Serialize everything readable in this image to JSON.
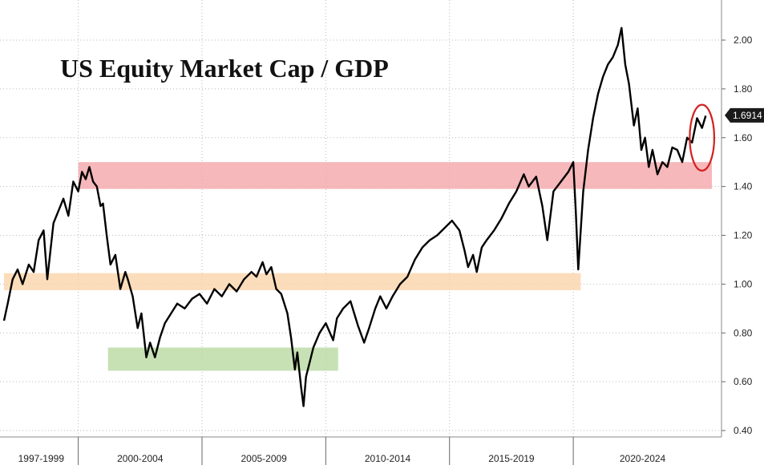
{
  "chart_data": {
    "type": "line",
    "title": "US Equity Market Cap / GDP",
    "xlabel": "",
    "ylabel": "",
    "ylim": [
      0.4,
      2.1
    ],
    "yticks": [
      "0.40",
      "0.60",
      "0.80",
      "1.00",
      "1.20",
      "1.40",
      "1.60",
      "1.80",
      "2.00"
    ],
    "x_periods": [
      "1997-1999",
      "2000-2004",
      "2005-2009",
      "2010-2014",
      "2015-2019",
      "2020-2024"
    ],
    "x_range": [
      1997.0,
      2025.6
    ],
    "grid": true,
    "last_value_label": "1.6914",
    "colors": {
      "line": "#000000",
      "red_band": "#f4a6aa",
      "orange_band": "#fbd5aa",
      "green_band": "#b9d9a1",
      "highlight": "#d42020",
      "label_bg": "#1a1a1a"
    },
    "series": [
      {
        "x": [
          1997.0,
          1997.15,
          1997.35,
          1997.55,
          1997.75,
          1998.0,
          1998.2,
          1998.4,
          1998.6,
          1998.75,
          1999.0,
          1999.2,
          1999.4,
          1999.6,
          1999.8,
          2000.0,
          2000.15,
          2000.3,
          2000.45,
          2000.6,
          2000.75,
          2000.9,
          2001.0,
          2001.15,
          2001.3,
          2001.5,
          2001.7,
          2001.9,
          2002.0,
          2002.2,
          2002.4,
          2002.55,
          2002.75,
          2002.9,
          2003.1,
          2003.3,
          2003.5,
          2003.75,
          2004.0,
          2004.3,
          2004.6,
          2004.9,
          2005.2,
          2005.5,
          2005.8,
          2006.1,
          2006.4,
          2006.7,
          2007.0,
          2007.2,
          2007.45,
          2007.6,
          2007.8,
          2008.0,
          2008.2,
          2008.45,
          2008.6,
          2008.75,
          2008.85,
          2009.0,
          2009.1,
          2009.2,
          2009.35,
          2009.5,
          2009.75,
          2010.0,
          2010.3,
          2010.45,
          2010.7,
          2011.0,
          2011.3,
          2011.55,
          2011.75,
          2012.0,
          2012.2,
          2012.45,
          2012.7,
          2013.0,
          2013.3,
          2013.6,
          2013.9,
          2014.2,
          2014.5,
          2014.8,
          2015.1,
          2015.4,
          2015.6,
          2015.75,
          2015.95,
          2016.1,
          2016.3,
          2016.5,
          2016.8,
          2017.1,
          2017.4,
          2017.7,
          2018.0,
          2018.2,
          2018.5,
          2018.75,
          2018.95,
          2019.2,
          2019.5,
          2019.8,
          2020.0,
          2020.1,
          2020.2,
          2020.4,
          2020.6,
          2020.8,
          2021.0,
          2021.2,
          2021.4,
          2021.6,
          2021.8,
          2021.95,
          2022.1,
          2022.25,
          2022.45,
          2022.6,
          2022.75,
          2022.9,
          2023.05,
          2023.2,
          2023.4,
          2023.6,
          2023.8,
          2024.0,
          2024.2,
          2024.4,
          2024.6,
          2024.8,
          2025.0,
          2025.2,
          2025.35
        ],
        "y": [
          0.85,
          0.92,
          1.02,
          1.06,
          1.0,
          1.08,
          1.05,
          1.18,
          1.22,
          1.02,
          1.25,
          1.3,
          1.35,
          1.28,
          1.42,
          1.38,
          1.46,
          1.43,
          1.48,
          1.42,
          1.4,
          1.32,
          1.33,
          1.2,
          1.08,
          1.12,
          0.98,
          1.05,
          1.02,
          0.95,
          0.82,
          0.88,
          0.7,
          0.76,
          0.7,
          0.78,
          0.84,
          0.88,
          0.92,
          0.9,
          0.94,
          0.96,
          0.92,
          0.98,
          0.95,
          1.0,
          0.97,
          1.02,
          1.05,
          1.03,
          1.09,
          1.04,
          1.07,
          0.98,
          0.96,
          0.88,
          0.78,
          0.65,
          0.72,
          0.58,
          0.5,
          0.62,
          0.68,
          0.74,
          0.8,
          0.84,
          0.77,
          0.86,
          0.9,
          0.93,
          0.83,
          0.76,
          0.82,
          0.9,
          0.95,
          0.9,
          0.95,
          1.0,
          1.03,
          1.1,
          1.15,
          1.18,
          1.2,
          1.23,
          1.26,
          1.22,
          1.14,
          1.07,
          1.12,
          1.05,
          1.15,
          1.18,
          1.22,
          1.27,
          1.33,
          1.38,
          1.45,
          1.4,
          1.44,
          1.32,
          1.18,
          1.38,
          1.42,
          1.46,
          1.5,
          1.3,
          1.06,
          1.38,
          1.55,
          1.68,
          1.78,
          1.85,
          1.9,
          1.93,
          1.98,
          2.05,
          1.9,
          1.82,
          1.65,
          1.72,
          1.55,
          1.6,
          1.48,
          1.55,
          1.45,
          1.5,
          1.48,
          1.56,
          1.55,
          1.5,
          1.6,
          1.58,
          1.68,
          1.64,
          1.69
        ]
      }
    ],
    "bands": [
      {
        "color": "red",
        "y_range": [
          1.39,
          1.5
        ],
        "x_range": [
          2000.0,
          2025.6
        ]
      },
      {
        "color": "orange",
        "y_range": [
          0.975,
          1.045
        ],
        "x_range": [
          1997.0,
          2020.3
        ]
      },
      {
        "color": "green",
        "y_range": [
          0.645,
          0.74
        ],
        "x_range": [
          2001.2,
          2010.5
        ]
      }
    ],
    "highlight_ellipse": {
      "center_x": 2025.2,
      "center_y": 1.6,
      "rx_years": 0.9,
      "ry_units": 0.135
    }
  }
}
